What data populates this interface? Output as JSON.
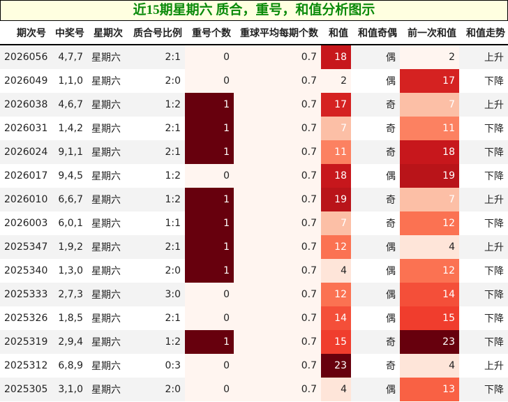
{
  "title": "近15期星期六 质合，重号，和值分析图示",
  "headers": [
    "期次号",
    "中奖号",
    "星期次",
    "质合号比例",
    "重号个数",
    "重球平均每期个数",
    "和值",
    "和值奇偶",
    "前一次和值",
    "和值走势"
  ],
  "colormap": [
    "#fff5f0",
    "#fee0d2",
    "#fcbba1",
    "#fc9272",
    "#fb6a4a",
    "#ef3b2c",
    "#cb181d",
    "#a50f15",
    "#67000d"
  ],
  "rows": [
    [
      "2026056",
      "4,7,7",
      "星期六",
      "2:1",
      "0",
      "0.7",
      "18",
      "偶",
      "2",
      "上升"
    ],
    [
      "2026049",
      "1,1,0",
      "星期六",
      "2:0",
      "0",
      "0.7",
      "2",
      "偶",
      "17",
      "下降"
    ],
    [
      "2026038",
      "4,6,7",
      "星期六",
      "1:2",
      "1",
      "0.7",
      "17",
      "奇",
      "7",
      "上升"
    ],
    [
      "2026031",
      "1,4,2",
      "星期六",
      "2:1",
      "1",
      "0.7",
      "7",
      "奇",
      "11",
      "下降"
    ],
    [
      "2026024",
      "9,1,1",
      "星期六",
      "2:1",
      "1",
      "0.7",
      "11",
      "奇",
      "18",
      "下降"
    ],
    [
      "2026017",
      "9,4,5",
      "星期六",
      "1:2",
      "0",
      "0.7",
      "18",
      "偶",
      "19",
      "下降"
    ],
    [
      "2026010",
      "6,6,7",
      "星期六",
      "1:2",
      "1",
      "0.7",
      "19",
      "奇",
      "7",
      "上升"
    ],
    [
      "2026003",
      "6,0,1",
      "星期六",
      "1:1",
      "1",
      "0.7",
      "7",
      "奇",
      "12",
      "下降"
    ],
    [
      "2025347",
      "1,9,2",
      "星期六",
      "2:1",
      "1",
      "0.7",
      "12",
      "偶",
      "4",
      "上升"
    ],
    [
      "2025340",
      "1,3,0",
      "星期六",
      "2:0",
      "1",
      "0.7",
      "4",
      "偶",
      "12",
      "下降"
    ],
    [
      "2025333",
      "2,7,3",
      "星期六",
      "3:0",
      "0",
      "0.7",
      "12",
      "偶",
      "14",
      "下降"
    ],
    [
      "2025326",
      "1,8,5",
      "星期六",
      "2:1",
      "0",
      "0.7",
      "14",
      "偶",
      "15",
      "下降"
    ],
    [
      "2025319",
      "2,9,4",
      "星期六",
      "1:2",
      "1",
      "0.7",
      "15",
      "奇",
      "23",
      "下降"
    ],
    [
      "2025312",
      "6,8,9",
      "星期六",
      "0:3",
      "0",
      "0.7",
      "23",
      "奇",
      "4",
      "上升"
    ],
    [
      "2025305",
      "3,1,0",
      "星期六",
      "2:0",
      "0",
      "0.7",
      "4",
      "偶",
      "13",
      "下降"
    ]
  ]
}
